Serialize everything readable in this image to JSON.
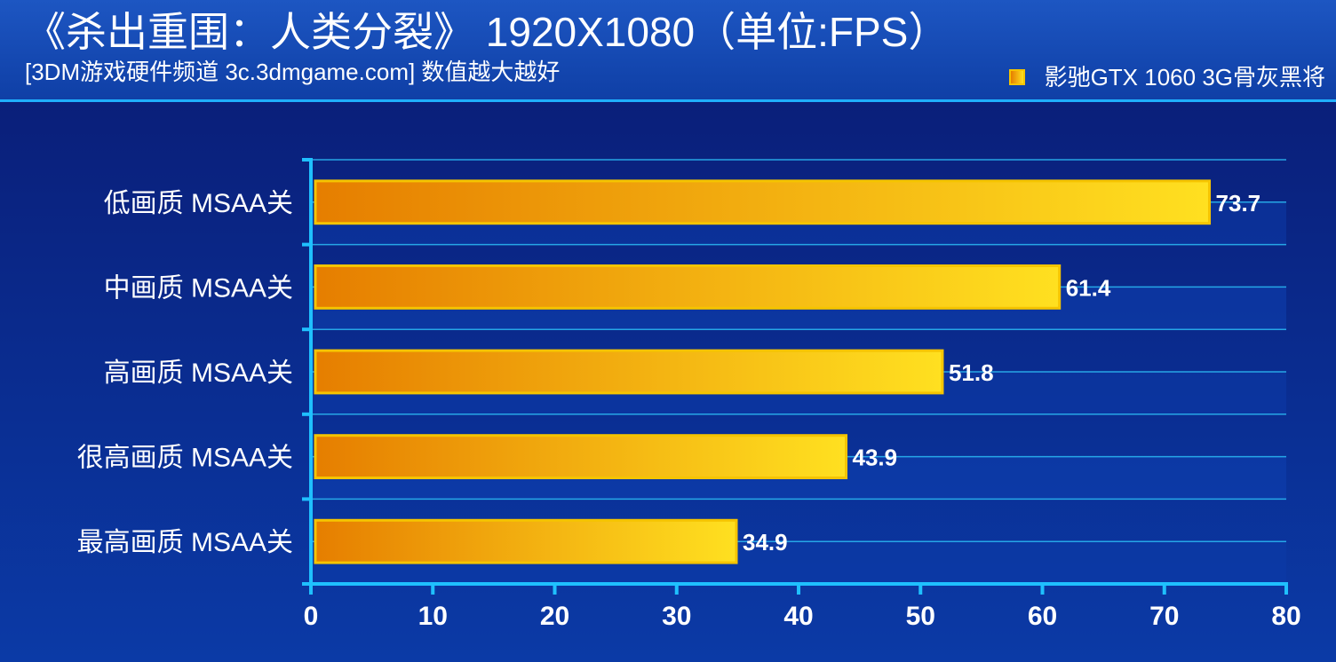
{
  "header": {
    "title": "《杀出重围：人类分裂》 1920X1080（单位:FPS）",
    "subtitle": "[3DM游戏硬件频道 3c.3dmgame.com] 数值越大越好",
    "legend_label": "影驰GTX 1060 3G骨灰黑将"
  },
  "colors": {
    "bar_start": "#e67e00",
    "bar_end": "#ffe020",
    "bar_border": "#f5c400",
    "axis": "#1fc0ff",
    "gridline": "#2ab4f0",
    "text": "#ffffff"
  },
  "chart_data": {
    "type": "bar",
    "orientation": "horizontal",
    "categories": [
      "低画质 MSAA关",
      "中画质 MSAA关",
      "高画质 MSAA关",
      "很高画质 MSAA关",
      "最高画质 MSAA关"
    ],
    "series": [
      {
        "name": "影驰GTX 1060 3G骨灰黑将",
        "values": [
          73.7,
          61.4,
          51.8,
          43.9,
          34.9
        ]
      }
    ],
    "data_labels": [
      "73.7",
      "61.4",
      "51.8",
      "43.9",
      "34.9"
    ],
    "xlim": [
      0,
      80
    ],
    "xticks": [
      0,
      10,
      20,
      30,
      40,
      50,
      60,
      70,
      80
    ],
    "grid": true,
    "legend_position": "top-right"
  }
}
